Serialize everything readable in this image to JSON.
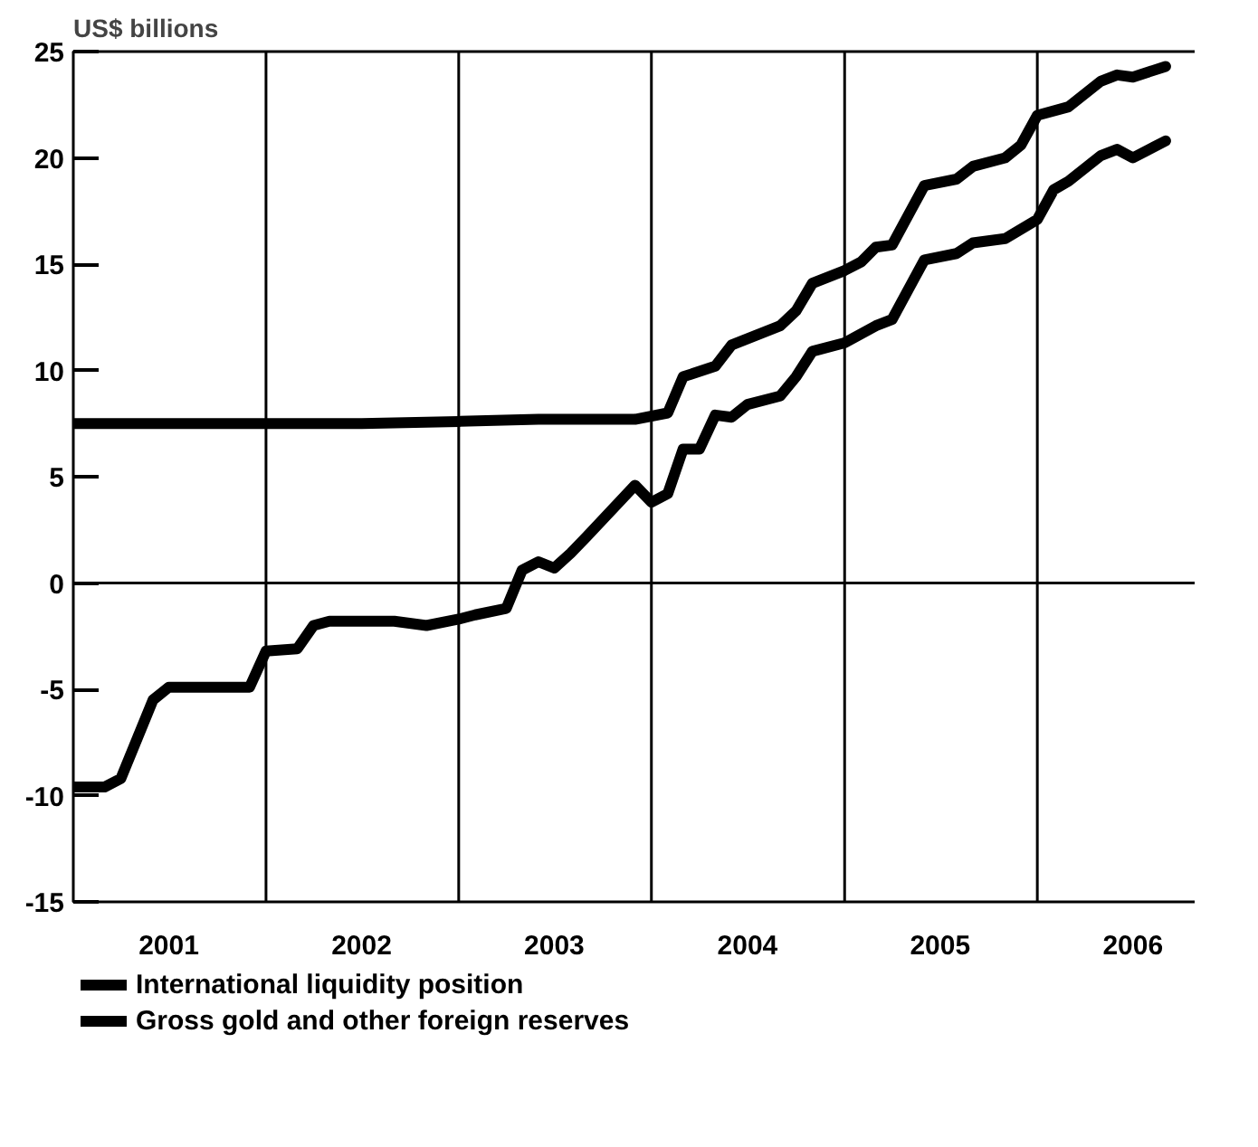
{
  "chart_data": {
    "type": "line",
    "ylabel": "US$ billions",
    "xlim": [
      "2001-01",
      "2006-12"
    ],
    "ylim": [
      -15,
      25
    ],
    "yticks": [
      -15,
      -10,
      -5,
      0,
      5,
      10,
      15,
      20,
      25
    ],
    "xticks": [
      {
        "value": "2001-07",
        "label": "2001"
      },
      {
        "value": "2002-07",
        "label": "2002"
      },
      {
        "value": "2003-07",
        "label": "2003"
      },
      {
        "value": "2004-07",
        "label": "2004"
      },
      {
        "value": "2005-07",
        "label": "2005"
      },
      {
        "value": "2006-07",
        "label": "2006"
      }
    ],
    "grid": false,
    "legend": "bottom left",
    "marker": "none",
    "line_style": "solid",
    "ref_lines": [
      {
        "axis": "y",
        "value": 0,
        "color": "#000000"
      },
      {
        "axis": "x",
        "value": "2002-01",
        "color": "#000000"
      },
      {
        "axis": "x",
        "value": "2003-01",
        "color": "#000000"
      },
      {
        "axis": "x",
        "value": "2004-01",
        "color": "#000000"
      },
      {
        "axis": "x",
        "value": "2005-01",
        "color": "#000000"
      },
      {
        "axis": "x",
        "value": "2006-01",
        "color": "#000000"
      }
    ],
    "series": [
      {
        "name": "International liquidity position",
        "color": "#000000",
        "x": [
          "2001-01",
          "2001-03",
          "2001-04",
          "2001-06",
          "2001-07",
          "2001-12",
          "2002-01",
          "2002-03",
          "2002-04",
          "2002-05",
          "2002-09",
          "2002-11",
          "2003-01",
          "2003-02",
          "2003-04",
          "2003-05",
          "2003-06",
          "2003-07",
          "2003-08",
          "2003-09",
          "2003-12",
          "2004-01",
          "2004-02",
          "2004-03",
          "2004-04",
          "2004-05",
          "2004-06",
          "2004-07",
          "2004-09",
          "2004-10",
          "2004-11",
          "2005-01",
          "2005-03",
          "2005-04",
          "2005-06",
          "2005-08",
          "2005-09",
          "2005-11",
          "2006-01",
          "2006-02",
          "2006-03",
          "2006-05",
          "2006-06",
          "2006-07",
          "2006-09"
        ],
        "values": [
          -9.6,
          -9.6,
          -9.2,
          -5.5,
          -4.9,
          -4.9,
          -3.2,
          -3.1,
          -2.0,
          -1.8,
          -1.8,
          -2.0,
          -1.7,
          -1.5,
          -1.2,
          0.6,
          1.0,
          0.7,
          1.4,
          2.2,
          4.6,
          3.8,
          4.2,
          6.3,
          6.3,
          7.9,
          7.8,
          8.4,
          8.8,
          9.7,
          10.9,
          11.3,
          12.1,
          12.4,
          15.2,
          15.5,
          16.0,
          16.2,
          17.1,
          18.5,
          18.9,
          20.1,
          20.4,
          20.0,
          20.8
        ]
      },
      {
        "name": "Gross gold and other foreign reserves",
        "color": "#000000",
        "x": [
          "2001-01",
          "2002-01",
          "2002-07",
          "2003-01",
          "2003-06",
          "2003-09",
          "2003-12",
          "2004-02",
          "2004-03",
          "2004-05",
          "2004-06",
          "2004-09",
          "2004-10",
          "2004-11",
          "2005-01",
          "2005-02",
          "2005-03",
          "2005-04",
          "2005-06",
          "2005-08",
          "2005-09",
          "2005-11",
          "2005-12",
          "2006-01",
          "2006-03",
          "2006-05",
          "2006-06",
          "2006-07",
          "2006-09"
        ],
        "values": [
          7.5,
          7.5,
          7.5,
          7.6,
          7.7,
          7.7,
          7.7,
          8.0,
          9.7,
          10.2,
          11.2,
          12.1,
          12.8,
          14.1,
          14.7,
          15.1,
          15.8,
          15.9,
          18.7,
          19.0,
          19.6,
          20.0,
          20.6,
          22.0,
          22.4,
          23.6,
          23.9,
          23.8,
          24.3
        ]
      }
    ]
  }
}
